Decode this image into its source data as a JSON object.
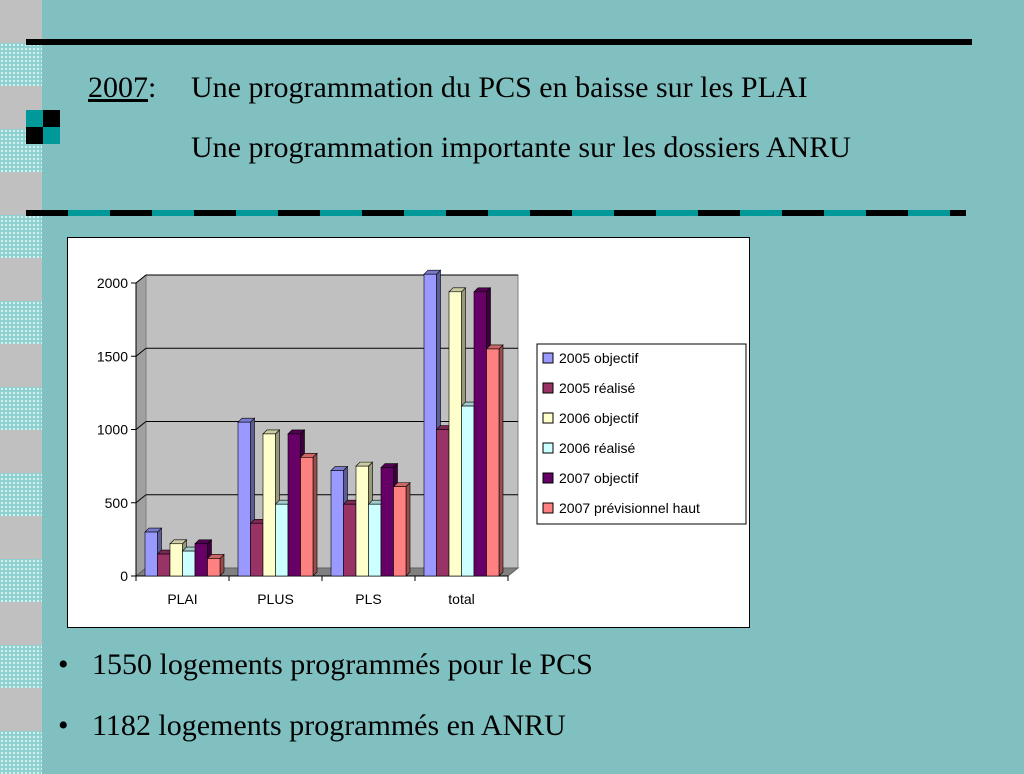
{
  "title": {
    "year": "2007",
    "colon": ":",
    "line1": "Une programmation du PCS en baisse sur les PLAI",
    "line2": "Une programmation importante sur les dossiers ANRU"
  },
  "bullets": [
    {
      "marker": "•",
      "text": "1550 logements programmés pour le PCS"
    },
    {
      "marker": "•",
      "text": "1182 logements programmés en ANRU"
    }
  ],
  "colors": {
    "background": "#80c0c0",
    "accent": "#009999"
  },
  "chart_data": {
    "type": "bar",
    "categories": [
      "PLAI",
      "PLUS",
      "PLS",
      "total"
    ],
    "series": [
      {
        "name": "2005 objectif",
        "color": "#9999ff",
        "values": [
          300,
          1050,
          720,
          2060
        ]
      },
      {
        "name": "2005 réalisé",
        "color": "#993366",
        "values": [
          150,
          360,
          490,
          1000
        ]
      },
      {
        "name": "2006 objectif",
        "color": "#ffffcc",
        "values": [
          220,
          970,
          750,
          1940
        ]
      },
      {
        "name": "2006 réalisé",
        "color": "#ccffff",
        "values": [
          170,
          490,
          490,
          1160
        ]
      },
      {
        "name": "2007 objectif",
        "color": "#660066",
        "values": [
          220,
          970,
          740,
          1940
        ]
      },
      {
        "name": "2007 prévisionnel haut",
        "color": "#ff8080",
        "values": [
          120,
          810,
          610,
          1550
        ]
      }
    ],
    "ylim": [
      0,
      2000
    ],
    "yticks": [
      "0",
      "500",
      "1000",
      "1500",
      "2000"
    ],
    "grid": true,
    "legend_position": "right",
    "three_d": true
  }
}
